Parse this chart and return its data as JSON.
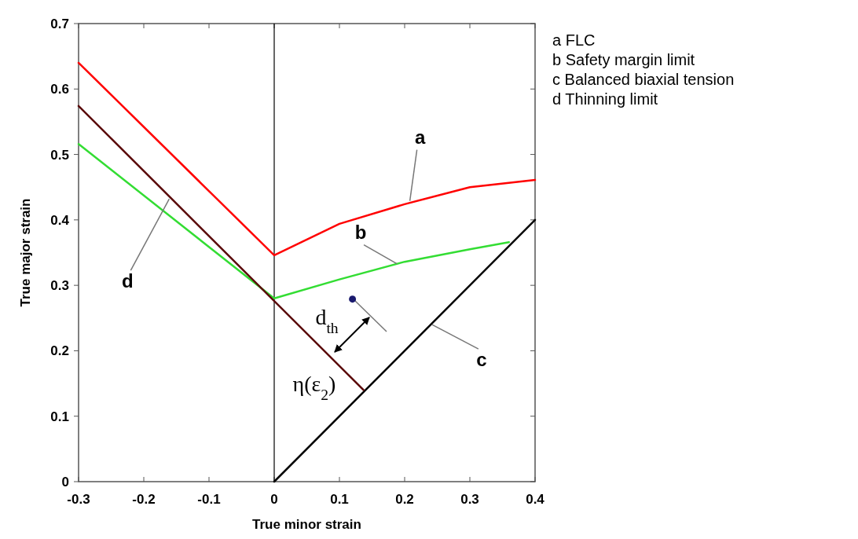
{
  "chart_data": {
    "type": "line",
    "xlabel": "True minor strain",
    "ylabel": "True major strain",
    "xlim": [
      -0.3,
      0.4
    ],
    "xticks": [
      -0.3,
      -0.2,
      -0.1,
      0,
      0.1,
      0.2,
      0.3,
      0.4
    ],
    "ylim": [
      0,
      0.7
    ],
    "yticks": [
      0,
      0.1,
      0.2,
      0.3,
      0.4,
      0.5,
      0.6,
      0.7
    ],
    "grid": false,
    "marker": "none",
    "line_style": "solid",
    "ref_lines": [
      {
        "axis": "x",
        "value": 0,
        "color": "#000000"
      }
    ],
    "series": [
      {
        "color": "#ff0000",
        "x": [
          -0.3,
          0,
          0.1,
          0.2,
          0.3,
          0.4
        ],
        "values": [
          0.64,
          0.346,
          0.394,
          0.424,
          0.45,
          0.461
        ]
      },
      {
        "color": "#33dd33",
        "x": [
          -0.3,
          0,
          0.1,
          0.2,
          0.3,
          0.36
        ],
        "values": [
          0.516,
          0.28,
          0.309,
          0.336,
          0.355,
          0.366
        ]
      },
      {
        "color": "#000000",
        "x": [
          0,
          0.4
        ],
        "values": [
          0,
          0.4
        ]
      },
      {
        "color": "#5a0a0a",
        "x": [
          -0.3,
          0.137
        ],
        "values": [
          0.574,
          0.14
        ]
      },
      {
        "type": "scatter",
        "marker": "circle",
        "color": "#1a1a6e",
        "x": [
          0.12
        ],
        "values": [
          0.279
        ]
      }
    ],
    "annotations": [
      {
        "text": "a",
        "x": 0.208,
        "y": 0.429
      },
      {
        "text": "b",
        "x": 0.188,
        "y": 0.333
      },
      {
        "text": "c",
        "x": 0.242,
        "y": 0.24
      },
      {
        "text": "d",
        "x": -0.161,
        "y": 0.432
      },
      "d$_{th}$",
      "η(ε$_{2}$)",
      "a  FLC",
      "b  Safety margin limit",
      "c  Balanced biaxial tension",
      "d  Thinning limit"
    ]
  }
}
